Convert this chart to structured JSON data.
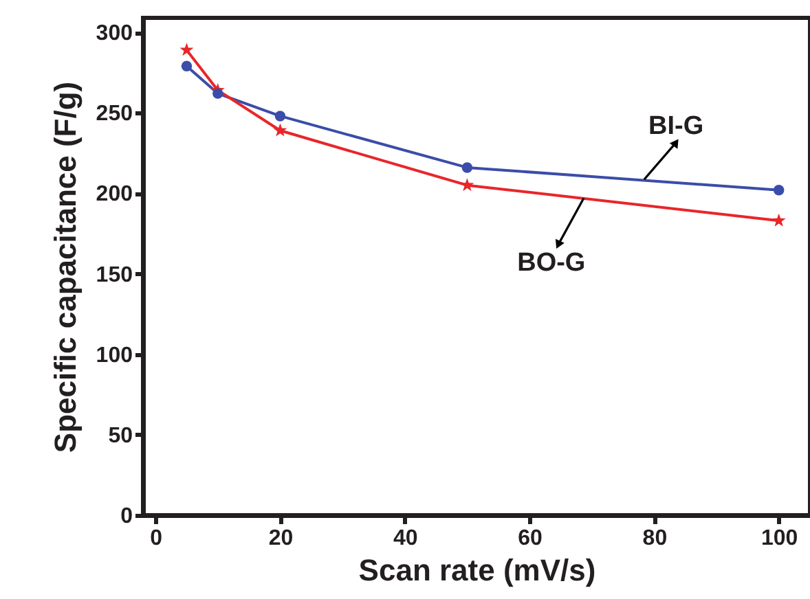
{
  "chart_data": {
    "type": "line",
    "xlabel": "Scan rate (mV/s)",
    "ylabel": "Specific capacitance (F/g)",
    "x": [
      5,
      10,
      20,
      50,
      100
    ],
    "series": [
      {
        "name": "BI-G",
        "color": "#3b4da8",
        "marker": "circle",
        "values": [
          279,
          262,
          248,
          216,
          202
        ]
      },
      {
        "name": "BO-G",
        "color": "#e8262a",
        "marker": "star",
        "values": [
          289,
          264,
          239,
          205,
          183
        ]
      }
    ],
    "xlim": [
      -2,
      105
    ],
    "ylim": [
      0,
      309
    ],
    "xticks": [
      0,
      20,
      40,
      60,
      80,
      100
    ],
    "yticks": [
      0,
      50,
      100,
      150,
      200,
      250,
      300
    ],
    "legend": false,
    "grid": false
  }
}
